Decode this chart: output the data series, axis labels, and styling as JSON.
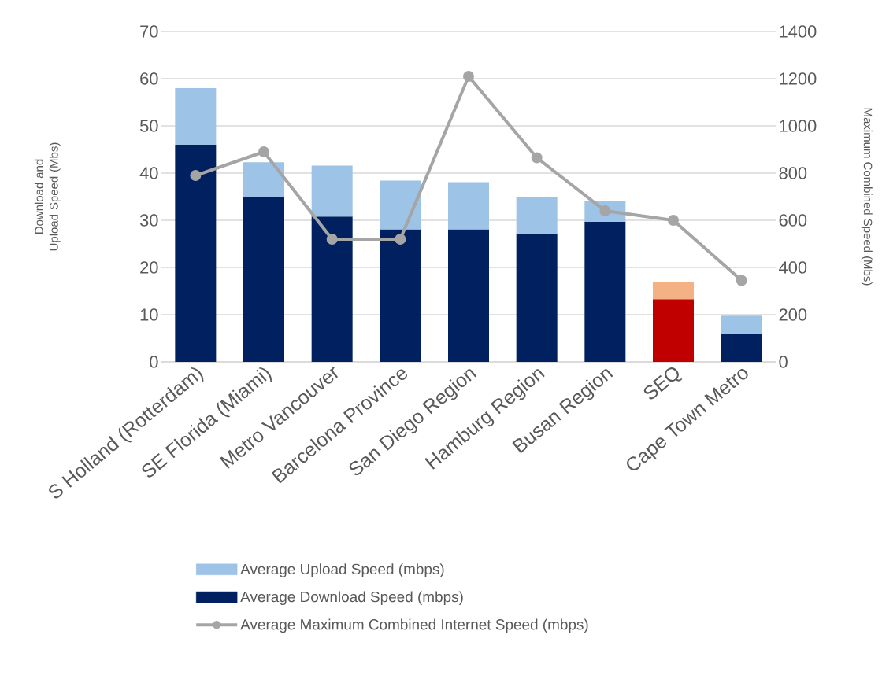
{
  "chart_data": {
    "type": "bar",
    "stacked": true,
    "categories": [
      "S Holland (Rotterdam)",
      "SE Florida (Miami)",
      "Metro Vancouver",
      "Barcelona Province",
      "San Diego Region",
      "Hamburg Region",
      "Busan Region",
      "SEQ",
      "Cape Town Metro"
    ],
    "ylabel": "Download and Upload Speed (Mbs)",
    "y2label": "Maximum Combined Speed (Mbs)",
    "ylim": [
      0,
      70
    ],
    "yticks": [
      0,
      10,
      20,
      30,
      40,
      50,
      60,
      70
    ],
    "y2lim": [
      0,
      1400
    ],
    "y2ticks": [
      0,
      200,
      400,
      600,
      800,
      1000,
      1200,
      1400
    ],
    "grid": "y",
    "legend": "bottom",
    "series": [
      {
        "name": "Average Download Speed (mbps)",
        "color": "#002060",
        "colors": [
          "#002060",
          "#002060",
          "#002060",
          "#002060",
          "#002060",
          "#002060",
          "#002060",
          "#c00000",
          "#002060"
        ],
        "values": [
          46,
          35,
          30.8,
          28.1,
          28.1,
          27.2,
          29.7,
          13.3,
          5.9
        ]
      },
      {
        "name": "Average Upload Speed (mbps)",
        "color": "#9dc3e6",
        "colors": [
          "#9dc3e6",
          "#9dc3e6",
          "#9dc3e6",
          "#9dc3e6",
          "#9dc3e6",
          "#9dc3e6",
          "#9dc3e6",
          "#f4b183",
          "#9dc3e6"
        ],
        "values": [
          12,
          7.3,
          10.8,
          10.3,
          10,
          7.8,
          4.3,
          3.6,
          3.9
        ]
      },
      {
        "name": "Average Maximum Combined Internet Speed (mbps)",
        "type": "line",
        "axis": "y2",
        "color": "#a5a5a5",
        "marker": "circle",
        "values": [
          790,
          890,
          520,
          520,
          1210,
          865,
          640,
          600,
          345
        ]
      }
    ]
  }
}
